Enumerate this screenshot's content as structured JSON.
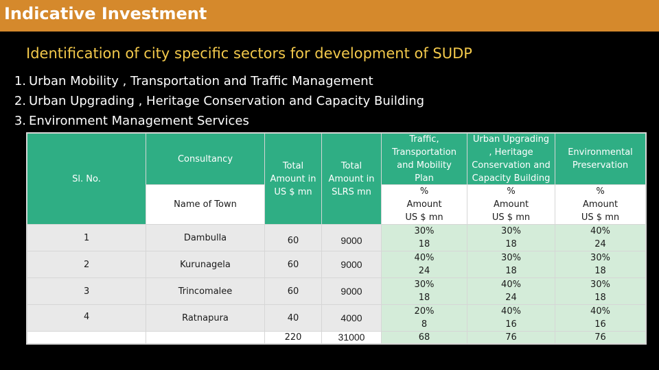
{
  "title": "Indicative Investment",
  "subtitle": "Identification of city specific sectors for development of SUDP",
  "sectors": [
    {
      "num": "1.",
      "label": "Urban Mobility , Transportation  and Traffic Management"
    },
    {
      "num": "2.",
      "label": "Urban Upgrading , Heritage Conservation and Capacity Building"
    },
    {
      "num": "3.",
      "label": "Environment Management Services"
    }
  ],
  "table": {
    "headers": {
      "sl_no": "Sl. No.",
      "consultancy": "Consultancy",
      "name_of_town": "Name of Town",
      "total_usd": [
        "Total",
        "Amount in",
        "US $ mn"
      ],
      "total_slrs": [
        "Total",
        "Amount in",
        "SLRS mn"
      ],
      "traffic": [
        "Traffic,",
        "Transportation",
        "and Mobility",
        "Plan"
      ],
      "urban": [
        "Urban Upgrading",
        ", Heritage",
        "Conservation and",
        "Capacity Building"
      ],
      "environment": [
        "Environmental",
        "Preservation"
      ],
      "unit": [
        "%",
        "Amount",
        "US $ mn"
      ]
    },
    "rows": [
      {
        "sl": "1",
        "town": "Dambulla",
        "usd": "60",
        "slrs": "9000",
        "traffic_pct": "30%",
        "traffic_amt": "18",
        "urban_pct": "30%",
        "urban_amt": "18",
        "env_pct": "40%",
        "env_amt": "24"
      },
      {
        "sl": "2",
        "town": "Kurunagela",
        "usd": "60",
        "slrs": "9000",
        "traffic_pct": "40%",
        "traffic_amt": "24",
        "urban_pct": "30%",
        "urban_amt": "18",
        "env_pct": "30%",
        "env_amt": "18"
      },
      {
        "sl": "3",
        "town": "Trincomalee",
        "usd": "60",
        "slrs": "9000",
        "traffic_pct": "30%",
        "traffic_amt": "18",
        "urban_pct": "40%",
        "urban_amt": "24",
        "env_pct": "30%",
        "env_amt": "18"
      },
      {
        "sl": "4",
        "town": "Ratnapura",
        "usd": "40",
        "slrs": "4000",
        "traffic_pct": "20%",
        "traffic_amt": "8",
        "urban_pct": "40%",
        "urban_amt": "16",
        "env_pct": "40%",
        "env_amt": "16"
      }
    ],
    "totals": {
      "usd": "220",
      "slrs": "31000",
      "traffic": "68",
      "urban": "76",
      "env": "76"
    }
  }
}
